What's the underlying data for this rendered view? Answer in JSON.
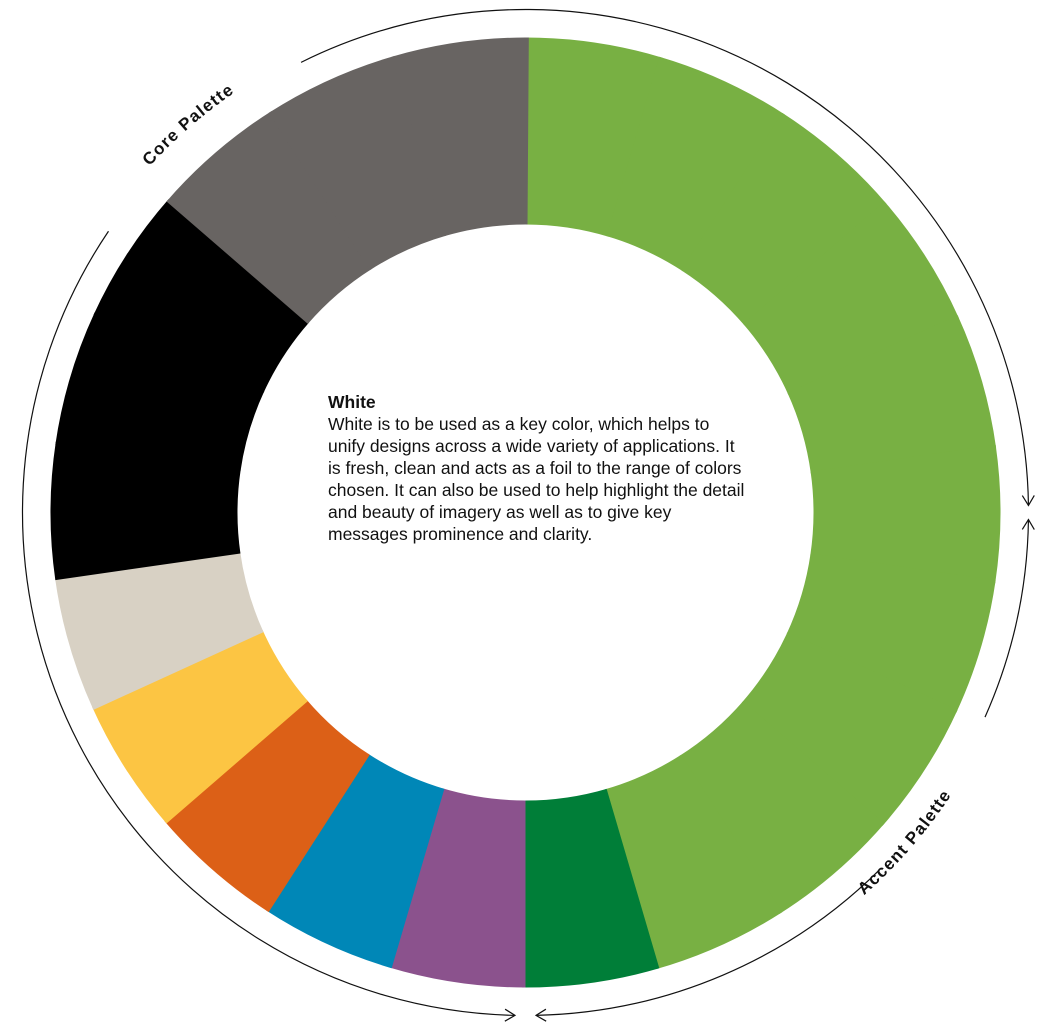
{
  "palette": {
    "core_label": "Core Palette",
    "accent_label": "Accent Palette",
    "segments": [
      {
        "name": "green-1",
        "color": "#78b043"
      },
      {
        "name": "green-2",
        "color": "#78b043"
      },
      {
        "name": "green-3",
        "color": "#78b043"
      },
      {
        "name": "green-4",
        "color": "#78b043"
      },
      {
        "name": "green-5",
        "color": "#78b043"
      },
      {
        "name": "green-6",
        "color": "#78b043"
      },
      {
        "name": "green-7",
        "color": "#78b043"
      },
      {
        "name": "green-8",
        "color": "#78b043"
      },
      {
        "name": "green-9",
        "color": "#78b043"
      },
      {
        "name": "green-10",
        "color": "#78b043"
      },
      {
        "name": "dark-green",
        "color": "#007e38"
      },
      {
        "name": "purple",
        "color": "#8b528d"
      },
      {
        "name": "blue",
        "color": "#0087b7"
      },
      {
        "name": "orange",
        "color": "#dc6017"
      },
      {
        "name": "yellow",
        "color": "#fcc543"
      },
      {
        "name": "beige",
        "color": "#d8d1c4"
      },
      {
        "name": "black-1",
        "color": "#000000"
      },
      {
        "name": "black-2",
        "color": "#000000"
      },
      {
        "name": "black-3",
        "color": "#000000"
      },
      {
        "name": "grey-1",
        "color": "#686462"
      },
      {
        "name": "grey-2",
        "color": "#686462"
      },
      {
        "name": "grey-3",
        "color": "#686462"
      }
    ]
  },
  "info": {
    "title": "White",
    "body": "White is to be used as a key color, which helps to unify designs across a wide variety of applications. It is fresh, clean and acts as a foil to the range of colors chosen. It can also be used to help highlight the detail and beauty of imagery as well as to give key messages prominence and clarity."
  }
}
